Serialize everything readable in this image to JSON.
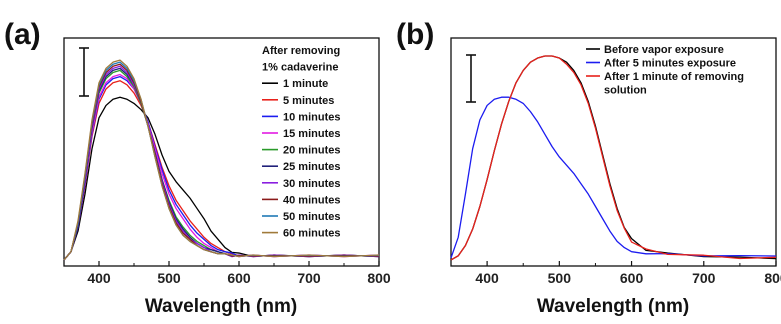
{
  "chart_data": [
    {
      "type": "line",
      "panel": "(a)",
      "title": "",
      "xlabel": "Wavelength (nm)",
      "ylabel": "",
      "xlim": [
        350,
        800
      ],
      "ylim": [
        0,
        1.0
      ],
      "xticks": [
        400,
        500,
        600,
        700,
        800
      ],
      "grid": false,
      "legend_position": "top-right",
      "legend_title": [
        "After removing",
        "1% cadaverine"
      ],
      "x": [
        350,
        360,
        370,
        380,
        390,
        400,
        410,
        420,
        430,
        440,
        450,
        460,
        470,
        480,
        490,
        500,
        510,
        520,
        530,
        540,
        550,
        560,
        570,
        580,
        590,
        600,
        620,
        650,
        700,
        750,
        800
      ],
      "series": [
        {
          "name": "1 minute",
          "color": "#000000",
          "values": [
            0.01,
            0.05,
            0.15,
            0.33,
            0.55,
            0.7,
            0.76,
            0.79,
            0.8,
            0.79,
            0.77,
            0.74,
            0.7,
            0.62,
            0.52,
            0.44,
            0.39,
            0.35,
            0.31,
            0.26,
            0.21,
            0.15,
            0.11,
            0.07,
            0.05,
            0.04,
            0.03,
            0.03,
            0.03,
            0.03,
            0.03
          ]
        },
        {
          "name": "5 minutes",
          "color": "#e8211b",
          "values": [
            0.01,
            0.05,
            0.17,
            0.37,
            0.61,
            0.77,
            0.84,
            0.87,
            0.88,
            0.86,
            0.82,
            0.76,
            0.68,
            0.57,
            0.46,
            0.37,
            0.3,
            0.25,
            0.2,
            0.16,
            0.12,
            0.09,
            0.07,
            0.05,
            0.04,
            0.03,
            0.03,
            0.03,
            0.03,
            0.03,
            0.03
          ]
        },
        {
          "name": "10 minutes",
          "color": "#1c1cf0",
          "values": [
            0.01,
            0.05,
            0.17,
            0.38,
            0.62,
            0.79,
            0.86,
            0.89,
            0.9,
            0.88,
            0.84,
            0.77,
            0.68,
            0.56,
            0.45,
            0.35,
            0.28,
            0.23,
            0.18,
            0.14,
            0.11,
            0.08,
            0.06,
            0.05,
            0.04,
            0.03,
            0.03,
            0.03,
            0.03,
            0.03,
            0.03
          ]
        },
        {
          "name": "15 minutes",
          "color": "#e31ae3",
          "values": [
            0.01,
            0.05,
            0.18,
            0.39,
            0.63,
            0.8,
            0.87,
            0.9,
            0.91,
            0.89,
            0.84,
            0.77,
            0.67,
            0.55,
            0.43,
            0.33,
            0.26,
            0.21,
            0.16,
            0.12,
            0.09,
            0.07,
            0.05,
            0.04,
            0.03,
            0.03,
            0.03,
            0.03,
            0.03,
            0.03,
            0.03
          ]
        },
        {
          "name": "20 minutes",
          "color": "#2a9a2a",
          "values": [
            0.01,
            0.05,
            0.18,
            0.4,
            0.65,
            0.82,
            0.89,
            0.92,
            0.93,
            0.9,
            0.85,
            0.77,
            0.66,
            0.53,
            0.4,
            0.3,
            0.22,
            0.17,
            0.13,
            0.1,
            0.08,
            0.06,
            0.05,
            0.04,
            0.03,
            0.03,
            0.03,
            0.03,
            0.03,
            0.03,
            0.03
          ]
        },
        {
          "name": "25 minutes",
          "color": "#20207a",
          "values": [
            0.01,
            0.05,
            0.18,
            0.4,
            0.65,
            0.83,
            0.9,
            0.93,
            0.94,
            0.91,
            0.86,
            0.78,
            0.66,
            0.53,
            0.4,
            0.29,
            0.21,
            0.16,
            0.12,
            0.09,
            0.07,
            0.06,
            0.05,
            0.04,
            0.03,
            0.03,
            0.03,
            0.03,
            0.03,
            0.03,
            0.03
          ]
        },
        {
          "name": "30 minutes",
          "color": "#8a1ee0",
          "values": [
            0.01,
            0.05,
            0.19,
            0.41,
            0.66,
            0.84,
            0.91,
            0.94,
            0.95,
            0.92,
            0.86,
            0.78,
            0.66,
            0.52,
            0.39,
            0.28,
            0.2,
            0.15,
            0.11,
            0.09,
            0.07,
            0.05,
            0.04,
            0.04,
            0.03,
            0.03,
            0.03,
            0.03,
            0.03,
            0.03,
            0.03
          ]
        },
        {
          "name": "40 minutes",
          "color": "#8b1a1a",
          "values": [
            0.01,
            0.05,
            0.19,
            0.42,
            0.67,
            0.85,
            0.92,
            0.95,
            0.96,
            0.93,
            0.87,
            0.78,
            0.66,
            0.52,
            0.38,
            0.27,
            0.19,
            0.14,
            0.11,
            0.08,
            0.06,
            0.05,
            0.04,
            0.04,
            0.03,
            0.03,
            0.03,
            0.03,
            0.03,
            0.03,
            0.03
          ]
        },
        {
          "name": "50 minutes",
          "color": "#1f7ab5",
          "values": [
            0.01,
            0.05,
            0.19,
            0.42,
            0.68,
            0.86,
            0.93,
            0.96,
            0.97,
            0.94,
            0.88,
            0.79,
            0.66,
            0.51,
            0.37,
            0.26,
            0.18,
            0.13,
            0.1,
            0.08,
            0.06,
            0.05,
            0.04,
            0.04,
            0.03,
            0.03,
            0.03,
            0.03,
            0.03,
            0.03,
            0.03
          ]
        },
        {
          "name": "60 minutes",
          "color": "#a07a3a",
          "values": [
            0.01,
            0.05,
            0.2,
            0.43,
            0.69,
            0.87,
            0.94,
            0.97,
            0.98,
            0.95,
            0.89,
            0.79,
            0.66,
            0.51,
            0.37,
            0.26,
            0.18,
            0.13,
            0.1,
            0.08,
            0.06,
            0.05,
            0.04,
            0.04,
            0.03,
            0.03,
            0.03,
            0.03,
            0.03,
            0.03,
            0.03
          ]
        }
      ]
    },
    {
      "type": "line",
      "panel": "(b)",
      "title": "",
      "xlabel": "Wavelength (nm)",
      "ylabel": "",
      "xlim": [
        350,
        800
      ],
      "ylim": [
        0,
        1.0
      ],
      "xticks": [
        400,
        500,
        600,
        700,
        800
      ],
      "grid": false,
      "legend_position": "top-right",
      "x": [
        350,
        360,
        370,
        380,
        390,
        400,
        410,
        420,
        430,
        440,
        450,
        460,
        470,
        480,
        490,
        500,
        510,
        520,
        530,
        540,
        550,
        560,
        570,
        580,
        590,
        600,
        620,
        650,
        700,
        750,
        800
      ],
      "series": [
        {
          "name": "Before vapor exposure",
          "color": "#000000",
          "values": [
            0.01,
            0.03,
            0.08,
            0.16,
            0.27,
            0.4,
            0.54,
            0.67,
            0.78,
            0.87,
            0.93,
            0.97,
            0.99,
            1.0,
            1.0,
            0.99,
            0.97,
            0.93,
            0.87,
            0.78,
            0.66,
            0.52,
            0.38,
            0.26,
            0.17,
            0.11,
            0.06,
            0.04,
            0.03,
            0.02,
            0.02
          ]
        },
        {
          "name": "After 5 minutes exposure",
          "color": "#1c1cf0",
          "values": [
            0.02,
            0.12,
            0.33,
            0.55,
            0.69,
            0.76,
            0.79,
            0.8,
            0.8,
            0.79,
            0.77,
            0.73,
            0.68,
            0.62,
            0.56,
            0.51,
            0.47,
            0.43,
            0.38,
            0.33,
            0.27,
            0.21,
            0.15,
            0.1,
            0.07,
            0.05,
            0.04,
            0.04,
            0.03,
            0.03,
            0.03
          ]
        },
        {
          "name": "After 1 minute of removing solution",
          "legend_lines": [
            "After 1 minute of removing",
            "solution"
          ],
          "color": "#e8211b",
          "values": [
            0.01,
            0.03,
            0.08,
            0.16,
            0.27,
            0.4,
            0.54,
            0.67,
            0.78,
            0.87,
            0.93,
            0.97,
            0.99,
            1.0,
            1.0,
            0.99,
            0.96,
            0.92,
            0.86,
            0.77,
            0.65,
            0.51,
            0.37,
            0.25,
            0.16,
            0.1,
            0.06,
            0.04,
            0.03,
            0.02,
            0.02
          ]
        }
      ]
    }
  ]
}
